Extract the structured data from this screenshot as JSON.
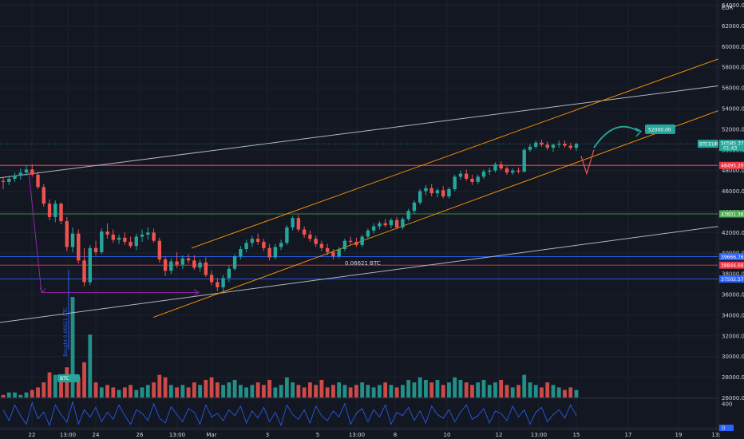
{
  "chart_data": {
    "type": "candlestick",
    "symbol": "BTCEUR",
    "currency": "EUR",
    "y_ticks": [
      26000,
      28000,
      30000,
      32000,
      34000,
      36000,
      38000,
      40000,
      42000,
      44000,
      46000,
      48000,
      50000,
      52000,
      54000,
      56000,
      58000,
      60000,
      62000,
      64000
    ],
    "x_ticks": [
      "22",
      "13:00",
      "24",
      "26",
      "13:00",
      "Mar",
      "3",
      "5",
      "13:00",
      "8",
      "10",
      "12",
      "13:00",
      "15",
      "17",
      "19",
      "13:"
    ],
    "ylim": [
      25500,
      64500
    ],
    "price_labels": {
      "current": "50585.37",
      "current_sub": "01:43",
      "resistance": "48495.20",
      "level_44k": "43801.38",
      "level_39_6k": "39666.76",
      "level_38_9k": "38844.66",
      "level_37_5k": "37502.57"
    },
    "target_label": "52000.00",
    "annotation_range": "0.06621 BTC",
    "annotation_drop": "Bought 0.06621 BTC",
    "annotation_small": "BTC",
    "indicator_ticks": [
      "400",
      "0"
    ],
    "candles": [
      [
        47000,
        47400,
        46200,
        46900
      ],
      [
        46900,
        47500,
        46600,
        47200
      ],
      [
        47200,
        47800,
        46900,
        47500
      ],
      [
        47500,
        48200,
        47100,
        47800
      ],
      [
        47800,
        48500,
        47500,
        48100
      ],
      [
        48100,
        48600,
        47400,
        47600
      ],
      [
        47600,
        47900,
        46200,
        46400
      ],
      [
        46400,
        46700,
        44500,
        44800
      ],
      [
        44800,
        45200,
        43200,
        43500
      ],
      [
        43500,
        45100,
        43000,
        44800
      ],
      [
        44800,
        44900,
        42800,
        43100
      ],
      [
        43100,
        43500,
        40200,
        40600
      ],
      [
        40600,
        42500,
        40100,
        41900
      ],
      [
        41900,
        42300,
        39000,
        39300
      ],
      [
        39300,
        40500,
        36800,
        37200
      ],
      [
        37200,
        40800,
        36900,
        40500
      ],
      [
        40500,
        41200,
        39800,
        40100
      ],
      [
        40100,
        42400,
        39900,
        42100
      ],
      [
        42100,
        42900,
        41400,
        41800
      ],
      [
        41800,
        42300,
        41000,
        41300
      ],
      [
        41300,
        41800,
        40900,
        41500
      ],
      [
        41500,
        42000,
        40800,
        41100
      ],
      [
        41100,
        41600,
        40500,
        40700
      ],
      [
        40700,
        41900,
        40300,
        41600
      ],
      [
        41600,
        42300,
        41100,
        41800
      ],
      [
        41800,
        42500,
        41300,
        42000
      ],
      [
        42000,
        42400,
        41000,
        41200
      ],
      [
        41200,
        41500,
        39100,
        39400
      ],
      [
        39400,
        39700,
        37800,
        38300
      ],
      [
        38300,
        39500,
        38000,
        39200
      ],
      [
        39200,
        40100,
        38600,
        38900
      ],
      [
        38900,
        39800,
        38500,
        39500
      ],
      [
        39500,
        39900,
        39000,
        39300
      ],
      [
        39300,
        39800,
        38400,
        38600
      ],
      [
        38600,
        39400,
        38200,
        39100
      ],
      [
        39100,
        39600,
        37700,
        37900
      ],
      [
        37900,
        38300,
        36900,
        37200
      ],
      [
        37200,
        37600,
        36300,
        36700
      ],
      [
        36700,
        37900,
        36100,
        37600
      ],
      [
        37600,
        38800,
        37200,
        38500
      ],
      [
        38500,
        39900,
        38300,
        39700
      ],
      [
        39700,
        40700,
        39400,
        40400
      ],
      [
        40400,
        41300,
        40100,
        41000
      ],
      [
        41000,
        41700,
        40600,
        41400
      ],
      [
        41400,
        41900,
        40800,
        41100
      ],
      [
        41100,
        41400,
        40200,
        40500
      ],
      [
        40500,
        40900,
        39300,
        39600
      ],
      [
        39600,
        40900,
        39400,
        40600
      ],
      [
        40600,
        41300,
        40300,
        41000
      ],
      [
        41000,
        42700,
        40800,
        42500
      ],
      [
        42500,
        43600,
        42200,
        43400
      ],
      [
        43400,
        43700,
        42100,
        42300
      ],
      [
        42300,
        42600,
        41500,
        41800
      ],
      [
        41800,
        42200,
        41100,
        41400
      ],
      [
        41400,
        41700,
        40600,
        40900
      ],
      [
        40900,
        41200,
        40200,
        40500
      ],
      [
        40500,
        40900,
        39800,
        40100
      ],
      [
        40100,
        40400,
        39400,
        39700
      ],
      [
        39700,
        40600,
        39500,
        40400
      ],
      [
        40400,
        41400,
        40200,
        41200
      ],
      [
        41200,
        41600,
        40800,
        41100
      ],
      [
        41100,
        41500,
        40600,
        40800
      ],
      [
        40800,
        41800,
        40600,
        41600
      ],
      [
        41600,
        42400,
        41400,
        42200
      ],
      [
        42200,
        42900,
        41900,
        42600
      ],
      [
        42600,
        43100,
        42300,
        42900
      ],
      [
        42900,
        43300,
        42500,
        42700
      ],
      [
        42700,
        43400,
        42400,
        43200
      ],
      [
        43200,
        43500,
        42300,
        42500
      ],
      [
        42500,
        43500,
        42300,
        43300
      ],
      [
        43300,
        44300,
        43100,
        44100
      ],
      [
        44100,
        45100,
        43800,
        44900
      ],
      [
        44900,
        46200,
        44700,
        46000
      ],
      [
        46000,
        46600,
        45600,
        46300
      ],
      [
        46300,
        46700,
        45500,
        45800
      ],
      [
        45800,
        46300,
        45400,
        46100
      ],
      [
        46100,
        46500,
        45300,
        45500
      ],
      [
        45500,
        46400,
        45300,
        46200
      ],
      [
        46200,
        47600,
        46000,
        47400
      ],
      [
        47400,
        48000,
        47100,
        47700
      ],
      [
        47700,
        48100,
        47000,
        47200
      ],
      [
        47200,
        47600,
        46600,
        46900
      ],
      [
        46900,
        47600,
        46700,
        47400
      ],
      [
        47400,
        48100,
        47200,
        47900
      ],
      [
        47900,
        48300,
        47600,
        48000
      ],
      [
        48000,
        48800,
        47800,
        48600
      ],
      [
        48600,
        48900,
        48000,
        48200
      ],
      [
        48200,
        48400,
        47600,
        47800
      ],
      [
        47800,
        48200,
        47600,
        48000
      ],
      [
        48000,
        48300,
        47700,
        47900
      ],
      [
        47900,
        50200,
        47800,
        50000
      ],
      [
        50000,
        50600,
        49800,
        50300
      ],
      [
        50300,
        50900,
        50100,
        50700
      ],
      [
        50700,
        51000,
        50300,
        50500
      ],
      [
        50500,
        50800,
        50000,
        50200
      ],
      [
        50200,
        50600,
        49800,
        50500
      ],
      [
        50500,
        50900,
        50200,
        50600
      ],
      [
        50600,
        50900,
        50200,
        50400
      ],
      [
        50400,
        50700,
        50000,
        50200
      ],
      [
        50200,
        50700,
        49900,
        50585
      ]
    ],
    "volumes": [
      1,
      2,
      2,
      1,
      2,
      3,
      4,
      6,
      10,
      9,
      7,
      12,
      40,
      8,
      14,
      25,
      6,
      4,
      5,
      4,
      3,
      4,
      5,
      3,
      4,
      5,
      6,
      9,
      8,
      5,
      4,
      5,
      4,
      6,
      5,
      7,
      8,
      6,
      5,
      6,
      7,
      5,
      4,
      5,
      6,
      5,
      7,
      4,
      5,
      8,
      6,
      5,
      4,
      6,
      5,
      7,
      4,
      5,
      6,
      5,
      4,
      5,
      6,
      5,
      4,
      5,
      6,
      5,
      4,
      5,
      7,
      6,
      8,
      7,
      6,
      7,
      5,
      6,
      8,
      7,
      6,
      5,
      6,
      7,
      5,
      6,
      7,
      5,
      4,
      5,
      9,
      6,
      5,
      4,
      6,
      5,
      4,
      3,
      4,
      3
    ],
    "indicator": [
      300,
      120,
      380,
      200,
      60,
      420,
      150,
      260,
      40,
      380,
      220,
      90,
      430,
      60,
      300,
      180,
      340,
      100,
      260,
      140,
      380,
      200,
      60,
      300,
      240,
      120,
      400,
      160,
      80,
      350,
      220,
      100,
      320,
      260,
      60,
      380,
      180,
      240,
      120,
      300,
      200,
      360,
      80,
      280,
      160,
      340,
      100,
      260,
      40,
      380,
      220,
      140,
      300,
      80,
      360,
      200,
      120,
      280,
      180,
      400,
      60,
      240,
      320,
      100,
      300,
      180,
      380,
      60,
      260,
      200,
      340,
      120,
      280,
      80,
      360,
      220,
      160,
      300,
      100,
      260,
      380,
      140,
      200,
      320,
      80,
      280,
      240,
      120,
      360,
      180,
      300,
      60,
      260,
      340,
      100,
      220,
      300,
      160,
      380,
      200
    ]
  }
}
